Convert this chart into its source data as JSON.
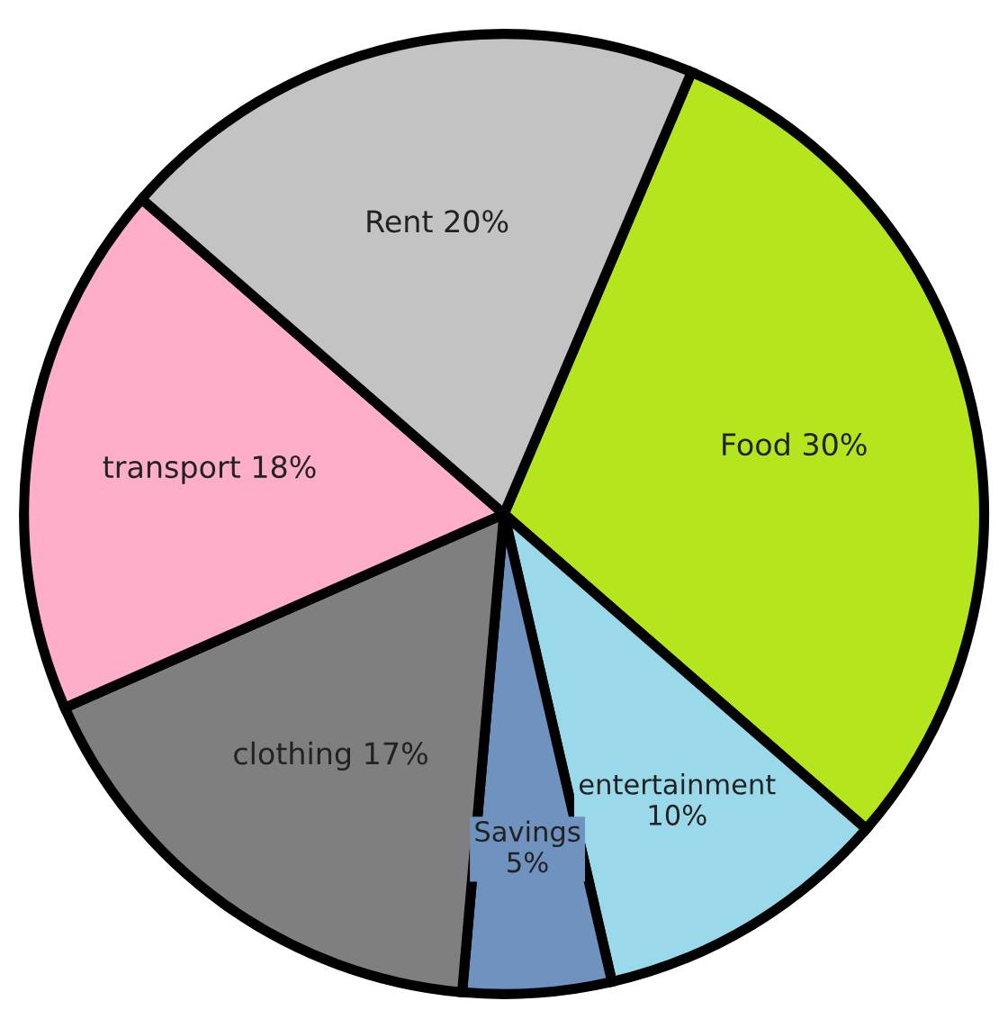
{
  "chart_data": {
    "type": "pie",
    "categories": [
      "Food",
      "entertainment",
      "Savings",
      "clothing",
      "transport",
      "Rent"
    ],
    "values": [
      30,
      10,
      5,
      17,
      18,
      20
    ],
    "colors": [
      "#b5e61d",
      "#99d9ea",
      "#7092be",
      "#7f7f7f",
      "#ffaec9",
      "#c3c3c3"
    ],
    "value_labels": [
      "30%",
      "10%",
      "5%",
      "17%",
      "18%",
      "20%"
    ]
  }
}
